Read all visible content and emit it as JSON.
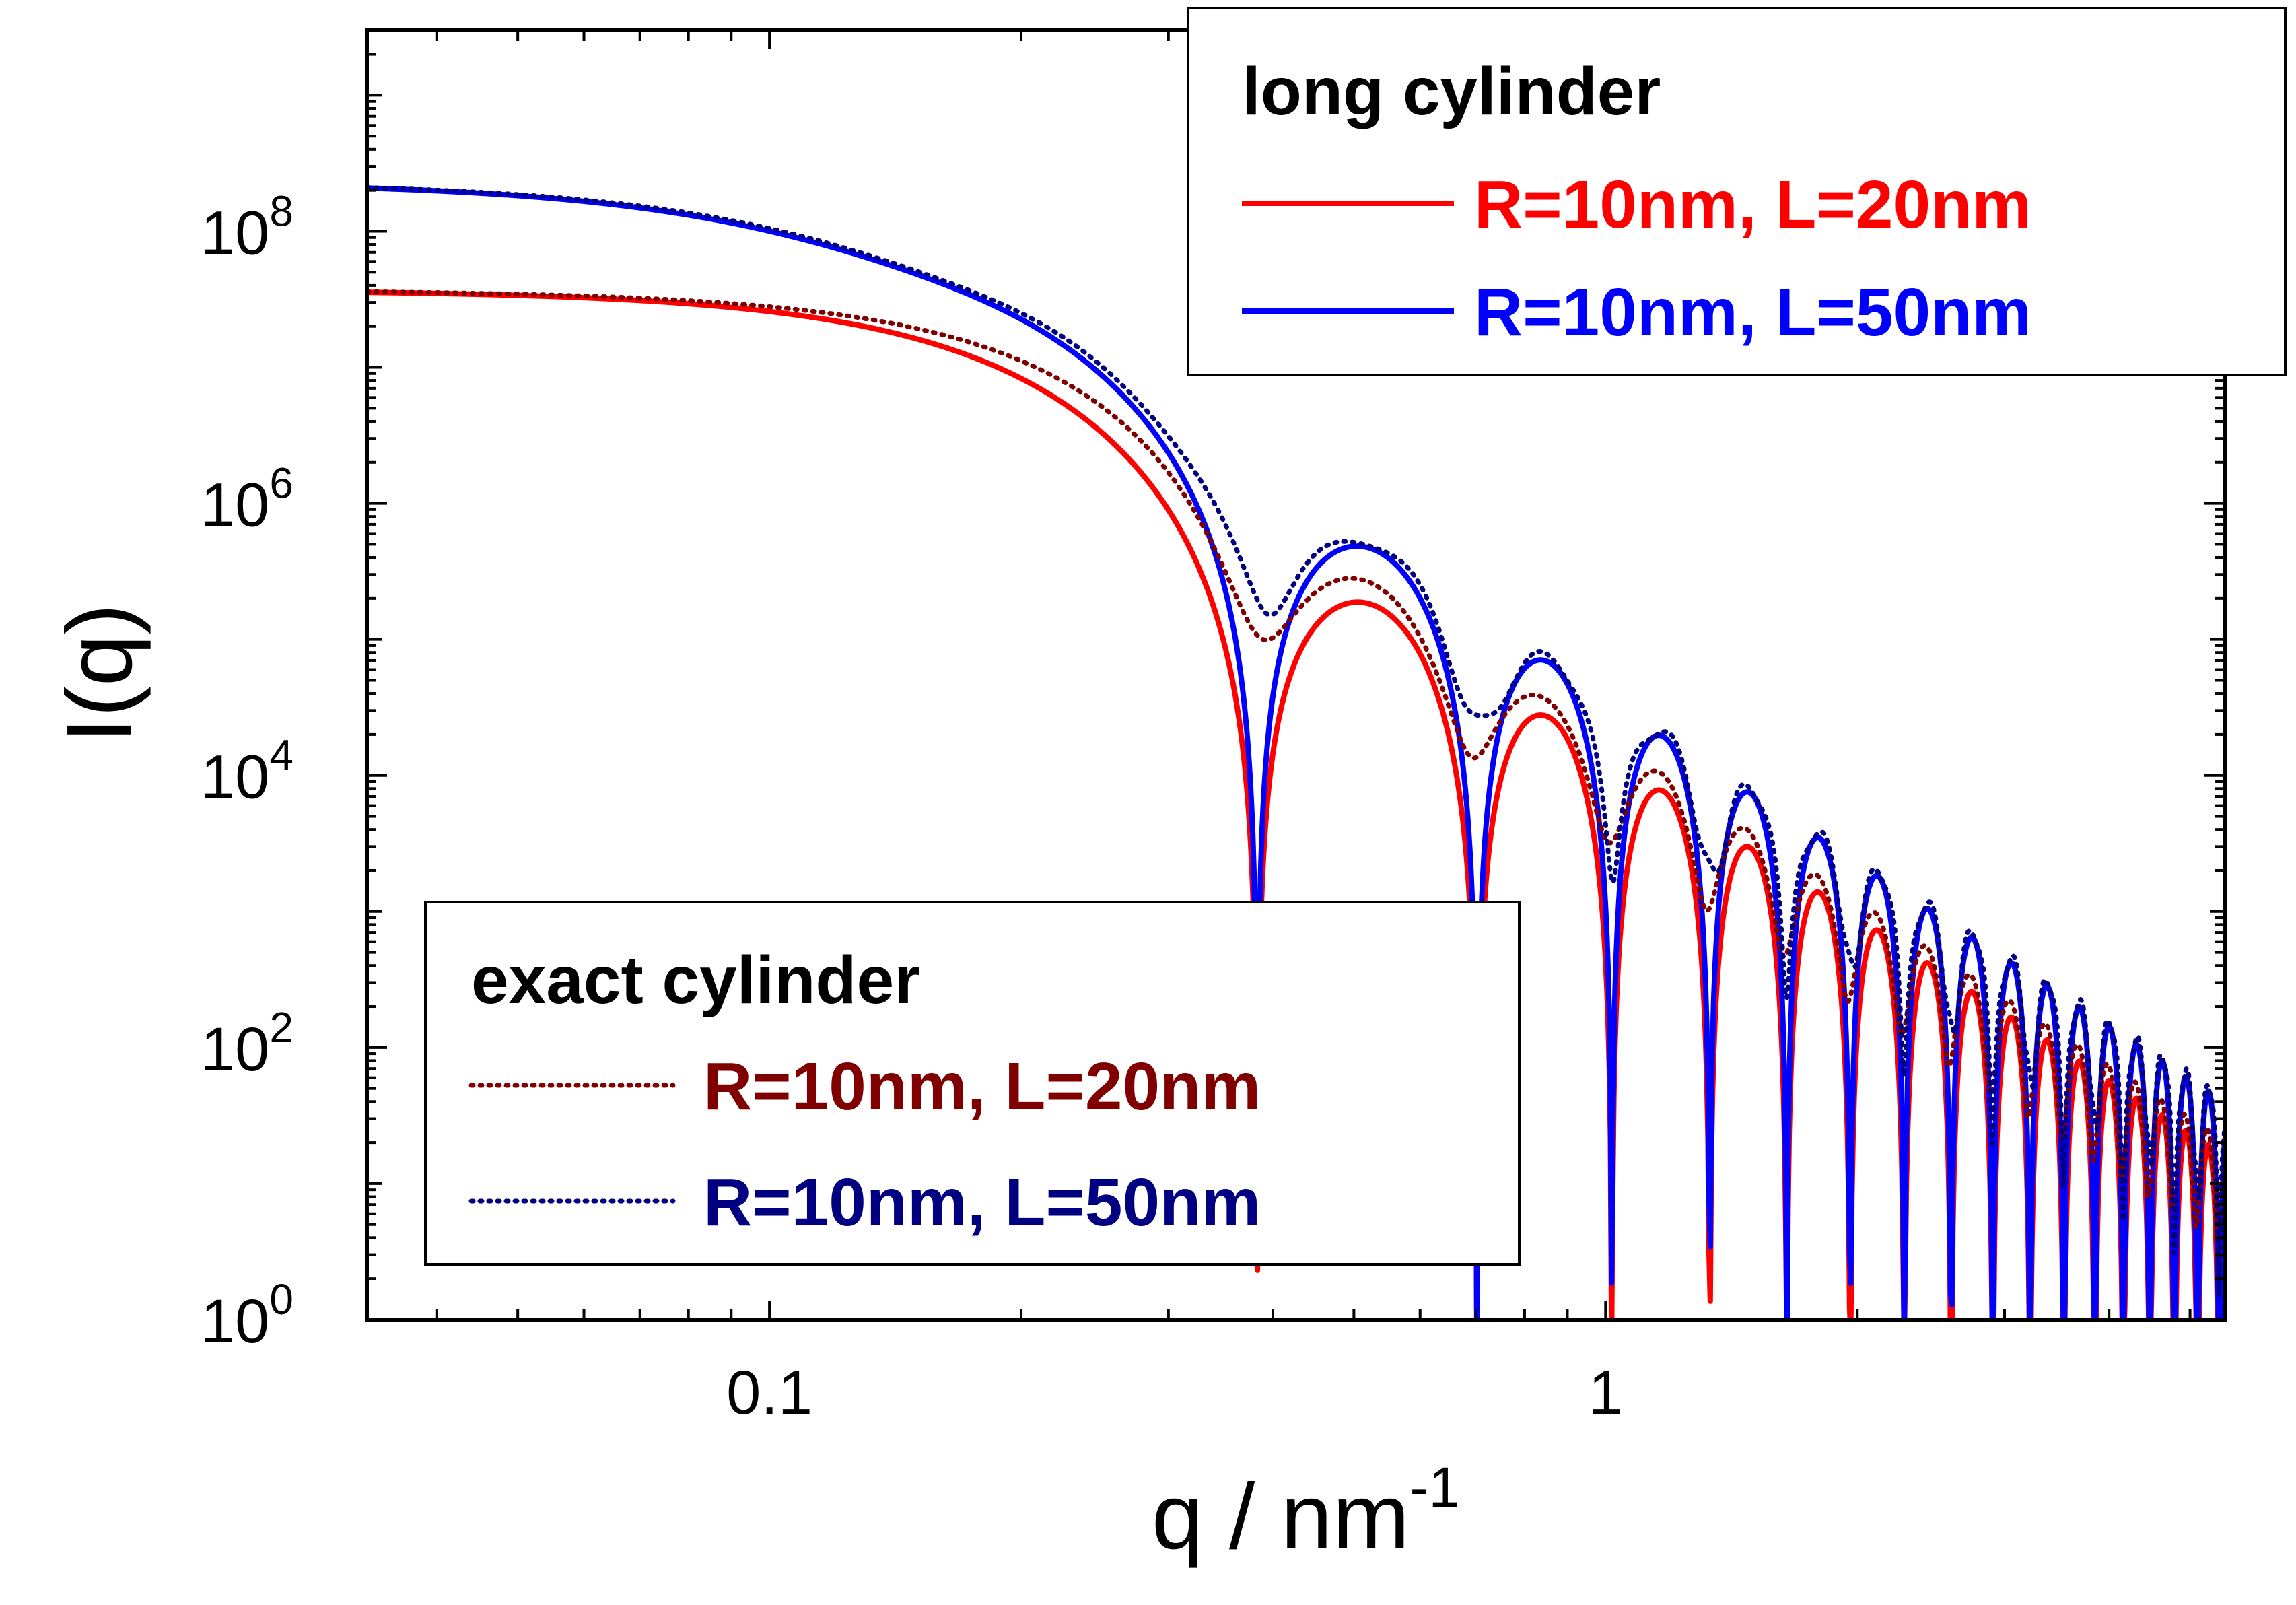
{
  "chart_data": {
    "type": "line",
    "title": "",
    "xlabel": "q / nm",
    "xlabel_superscript": "-1",
    "ylabel": "I(q)",
    "x_scale": "log",
    "y_scale": "log",
    "xlim": [
      0.033,
      5.5
    ],
    "ylim": [
      1,
      3000000000.0
    ],
    "grid": false,
    "x_ticks": [
      {
        "value": 0.1,
        "label": "0.1"
      },
      {
        "value": 1,
        "label": "1"
      }
    ],
    "y_ticks": [
      {
        "value": 1,
        "base": "10",
        "exponent": "0"
      },
      {
        "value": 100,
        "base": "10",
        "exponent": "2"
      },
      {
        "value": 10000,
        "base": "10",
        "exponent": "4"
      },
      {
        "value": 1000000,
        "base": "10",
        "exponent": "6"
      },
      {
        "value": 100000000,
        "base": "10",
        "exponent": "8"
      }
    ],
    "model": {
      "radius_nm": 10,
      "q_min": 0.033,
      "q_max": 5.5,
      "samples": 1600
    },
    "legends": [
      {
        "title": "long cylinder",
        "placement": "top-right",
        "entries": [
          {
            "series_index": 0,
            "label": "R=10nm, L=20nm"
          },
          {
            "series_index": 1,
            "label": "R=10nm, L=50nm"
          }
        ]
      },
      {
        "title": "exact cylinder",
        "placement": "bottom-left",
        "entries": [
          {
            "series_index": 2,
            "label": "R=10nm, L=20nm"
          },
          {
            "series_index": 3,
            "label": "R=10nm, L=50nm"
          }
        ]
      }
    ],
    "series": [
      {
        "name": "R=10nm, L=20nm",
        "group": "long cylinder",
        "R": 10,
        "L": 20,
        "color": "#ff0000",
        "style": "solid",
        "exact": false,
        "I0": 37000000.0
      },
      {
        "name": "R=10nm, L=50nm",
        "group": "long cylinder",
        "R": 10,
        "L": 50,
        "color": "#0000ff",
        "style": "solid",
        "exact": false,
        "I0": 230000000.0
      },
      {
        "name": "R=10nm, L=20nm",
        "group": "exact cylinder",
        "R": 10,
        "L": 20,
        "color": "#800000",
        "style": "dotted",
        "exact": true,
        "I0": 37000000.0
      },
      {
        "name": "R=10nm, L=50nm",
        "group": "exact cylinder",
        "R": 10,
        "L": 50,
        "color": "#000080",
        "style": "dotted",
        "exact": true,
        "I0": 230000000.0
      }
    ]
  }
}
